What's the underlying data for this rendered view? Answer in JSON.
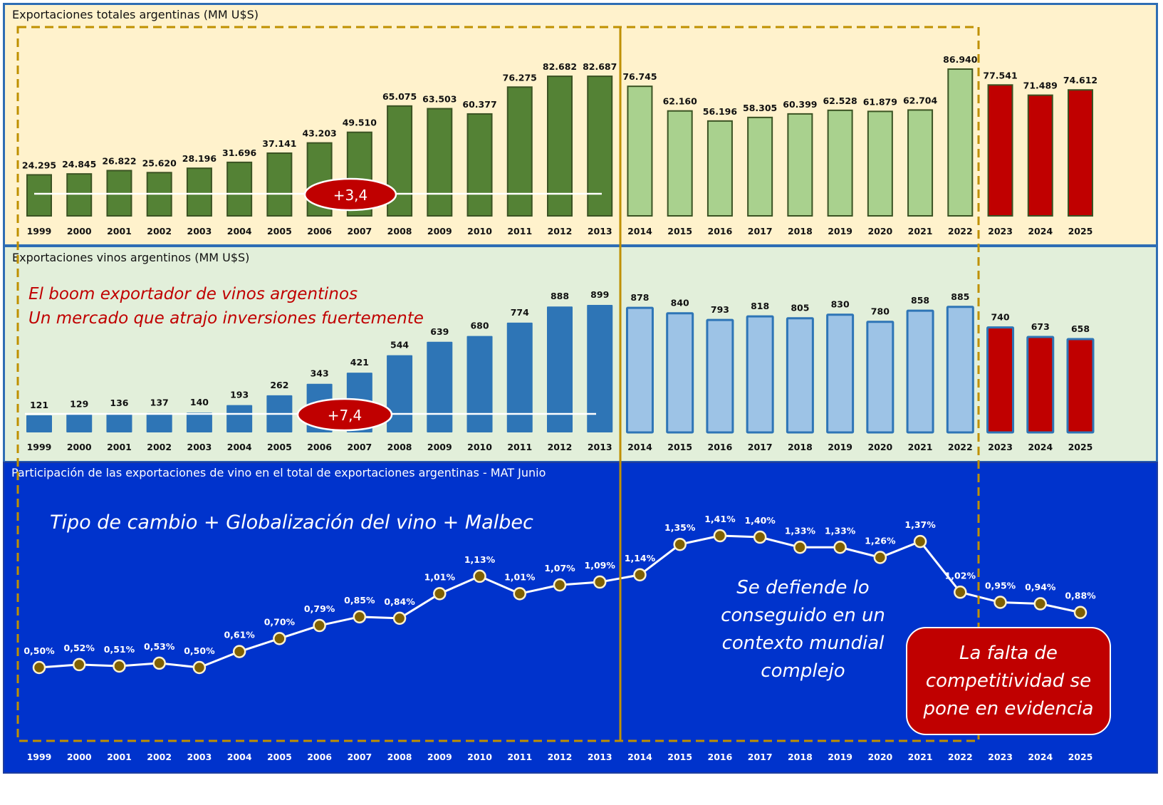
{
  "panels": {
    "total": {
      "title": "Exportaciones totales argentinas (MM U$S)",
      "badge": "+3,4"
    },
    "wine": {
      "title": "Exportaciones vinos argentinos (MM U$S)",
      "badge": "+7,4",
      "headline_line1": "El boom exportador de vinos argentinos",
      "headline_line2": "Un mercado que atrajo inversiones fuertemente"
    },
    "share": {
      "title": "Participación de las exportaciones de vino en el total de exportaciones argentinas - MAT Junio",
      "headline": "Tipo de cambio + Globalización del vino + Malbec",
      "note": "Se defiende lo conseguido en un contexto mundial complejo",
      "callout": "La falta de competitividad se pone en evidencia"
    }
  },
  "colors": {
    "total_period1": "#548235",
    "total_period2": "#A9D18E",
    "recent": "#C00000",
    "wine_period1": "#2E75B6",
    "wine_period2": "#9DC3E6",
    "panel1_bg": "#FFF2CC",
    "panel2_bg": "#E2EFDA",
    "panel3_bg": "#0033CC",
    "marker": "#7F6000",
    "divider": "#BF9000"
  },
  "chart_data": [
    {
      "type": "bar",
      "title": "Exportaciones totales argentinas (MM U$S)",
      "categories": [
        "1999",
        "2000",
        "2001",
        "2002",
        "2003",
        "2004",
        "2005",
        "2006",
        "2007",
        "2008",
        "2009",
        "2010",
        "2011",
        "2012",
        "2013",
        "2014",
        "2015",
        "2016",
        "2017",
        "2018",
        "2019",
        "2020",
        "2021",
        "2022",
        "2023",
        "2024",
        "2025"
      ],
      "values": [
        24295,
        24845,
        26822,
        25620,
        28196,
        31696,
        37141,
        43203,
        49510,
        65075,
        63503,
        60377,
        76275,
        82682,
        82687,
        76745,
        62160,
        56196,
        58305,
        60399,
        62528,
        61879,
        62704,
        86940,
        77541,
        71489,
        74612
      ],
      "value_labels": [
        "24.295",
        "24.845",
        "26.822",
        "25.620",
        "28.196",
        "31.696",
        "37.141",
        "43.203",
        "49.510",
        "65.075",
        "63.503",
        "60.377",
        "76.275",
        "82.682",
        "82.687",
        "76.745",
        "62.160",
        "56.196",
        "58.305",
        "60.399",
        "62.528",
        "61.879",
        "62.704",
        "86.940",
        "77.541",
        "71.489",
        "74.612"
      ],
      "periods": [
        "p1",
        "p1",
        "p1",
        "p1",
        "p1",
        "p1",
        "p1",
        "p1",
        "p1",
        "p1",
        "p1",
        "p1",
        "p1",
        "p1",
        "p1",
        "p2",
        "p2",
        "p2",
        "p2",
        "p2",
        "p2",
        "p2",
        "p2",
        "p2",
        "p3",
        "p3",
        "p3"
      ],
      "ylim": [
        0,
        90000
      ],
      "annotation": "+3,4"
    },
    {
      "type": "bar",
      "title": "Exportaciones vinos argentinos (MM U$S)",
      "categories": [
        "1999",
        "2000",
        "2001",
        "2002",
        "2003",
        "2004",
        "2005",
        "2006",
        "2007",
        "2008",
        "2009",
        "2010",
        "2011",
        "2012",
        "2013",
        "2014",
        "2015",
        "2016",
        "2017",
        "2018",
        "2019",
        "2020",
        "2021",
        "2022",
        "2023",
        "2024",
        "2025"
      ],
      "values": [
        121,
        129,
        136,
        137,
        140,
        193,
        262,
        343,
        421,
        544,
        639,
        680,
        774,
        888,
        899,
        878,
        840,
        793,
        818,
        805,
        830,
        780,
        858,
        885,
        740,
        673,
        658
      ],
      "value_labels": [
        "121",
        "129",
        "136",
        "137",
        "140",
        "193",
        "262",
        "343",
        "421",
        "544",
        "639",
        "680",
        "774",
        "888",
        "899",
        "878",
        "840",
        "793",
        "818",
        "805",
        "830",
        "780",
        "858",
        "885",
        "740",
        "673",
        "658"
      ],
      "periods": [
        "p1",
        "p1",
        "p1",
        "p1",
        "p1",
        "p1",
        "p1",
        "p1",
        "p1",
        "p1",
        "p1",
        "p1",
        "p1",
        "p1",
        "p1",
        "p2",
        "p2",
        "p2",
        "p2",
        "p2",
        "p2",
        "p2",
        "p2",
        "p2",
        "p3",
        "p3",
        "p3"
      ],
      "ylim": [
        0,
        900
      ],
      "annotation": "+7,4"
    },
    {
      "type": "line",
      "title": "Participación de las exportaciones de vino en el total de exportaciones argentinas - MAT Junio",
      "categories": [
        "1999",
        "2000",
        "2001",
        "2002",
        "2003",
        "2004",
        "2005",
        "2006",
        "2007",
        "2008",
        "2009",
        "2010",
        "2011",
        "2012",
        "2013",
        "2014",
        "2015",
        "2016",
        "2017",
        "2018",
        "2019",
        "2020",
        "2021",
        "2022",
        "2023",
        "2024",
        "2025"
      ],
      "values": [
        0.5,
        0.52,
        0.51,
        0.53,
        0.5,
        0.61,
        0.7,
        0.79,
        0.85,
        0.84,
        1.01,
        1.13,
        1.01,
        1.07,
        1.09,
        1.14,
        1.35,
        1.41,
        1.4,
        1.33,
        1.33,
        1.26,
        1.37,
        1.02,
        0.95,
        0.94,
        0.88
      ],
      "value_labels": [
        "0,50%",
        "0,52%",
        "0,51%",
        "0,53%",
        "0,50%",
        "0,61%",
        "0,70%",
        "0,79%",
        "0,85%",
        "0,84%",
        "1,01%",
        "1,13%",
        "1,01%",
        "1,07%",
        "1,09%",
        "1,14%",
        "1,35%",
        "1,41%",
        "1,40%",
        "1,33%",
        "1,33%",
        "1,26%",
        "1,37%",
        "1,02%",
        "0,95%",
        "0,94%",
        "0,88%"
      ],
      "ylim": [
        0.4,
        1.5
      ],
      "unit": "%"
    }
  ]
}
